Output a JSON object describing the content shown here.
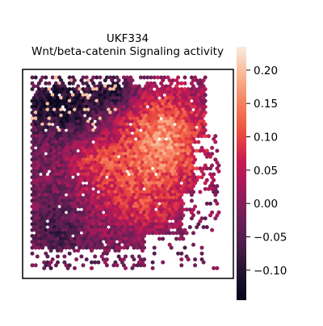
{
  "chart_data": {
    "type": "heatmap",
    "plot_kind": "spatial hexbin heatmap",
    "title": "UKF334",
    "subtitle": "Wnt/beta-catenin Signaling activity",
    "xlabel": "",
    "ylabel": "",
    "grid": false,
    "colormap": "rocket",
    "colorbar": {
      "range": [
        -0.145,
        0.235
      ],
      "ticks": [
        -0.1,
        -0.05,
        0.0,
        0.05,
        0.1,
        0.15,
        0.2
      ],
      "tick_labels": [
        "−0.10",
        "−0.05",
        "0.00",
        "0.05",
        "0.10",
        "0.15",
        "0.20"
      ],
      "colors": [
        "#03051a",
        "#221331",
        "#4c1d4b",
        "#701f57",
        "#a11a5b",
        "#cb1b4f",
        "#ed503e",
        "#f6815f",
        "#f7b694",
        "#faebdd"
      ]
    },
    "value_range": [
      -0.145,
      0.235
    ],
    "high_activity_region": "upper right",
    "low_activity_region": "upper left"
  }
}
